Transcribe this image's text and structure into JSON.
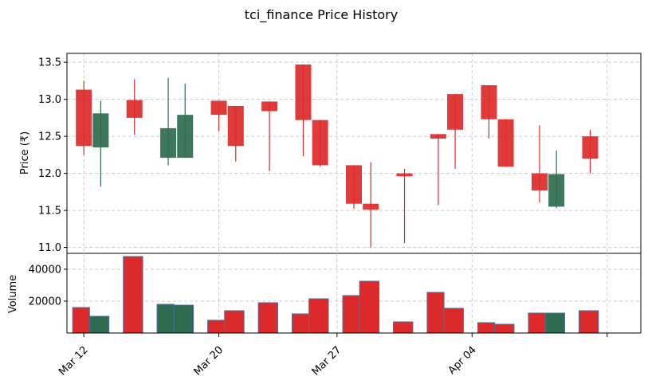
{
  "chart_data": {
    "type": "candlestick",
    "title": "tci_finance Price History",
    "price_panel": {
      "ylabel": "Price (₹)",
      "ylim": [
        10.92,
        13.62
      ],
      "yticks": [
        "11.0",
        "11.5",
        "12.0",
        "12.5",
        "13.0",
        "13.5"
      ],
      "ytick_values": [
        11.0,
        11.5,
        12.0,
        12.5,
        13.0,
        13.5
      ],
      "grid": true
    },
    "volume_panel": {
      "ylabel": "Volume",
      "ylim": [
        0,
        50000
      ],
      "yticks": [
        "20000",
        "40000"
      ],
      "ytick_values": [
        20000,
        40000
      ],
      "grid": true
    },
    "xticks": [
      {
        "label": "Mar 12",
        "date": "2025-03-12"
      },
      {
        "label": "Mar 20",
        "date": "2025-03-20"
      },
      {
        "label": "Mar 27",
        "date": "2025-03-27"
      },
      {
        "label": "Apr 04",
        "date": "2025-04-04"
      },
      {
        "label": "",
        "date": "2025-04-12"
      }
    ],
    "xlim": [
      "2025-03-11",
      "2025-04-14"
    ],
    "colors": {
      "up": "#2e6b4f",
      "down": "#dc2a2a",
      "volume_up": "#2e6b4f",
      "volume_down": "#dc2a2a",
      "volume_edge": "#4a6fa5",
      "grid": "#cccccc"
    },
    "candles": [
      {
        "date": "2025-03-12",
        "open": 13.13,
        "high": 13.25,
        "low": 12.25,
        "close": 12.37,
        "volume": 16000
      },
      {
        "date": "2025-03-13",
        "open": 12.35,
        "high": 12.98,
        "low": 11.82,
        "close": 12.81,
        "volume": 10500
      },
      {
        "date": "2025-03-15",
        "open": 12.99,
        "high": 13.27,
        "low": 12.52,
        "close": 12.75,
        "volume": 48000
      },
      {
        "date": "2025-03-17",
        "open": 12.21,
        "high": 13.29,
        "low": 12.11,
        "close": 12.61,
        "volume": 18000
      },
      {
        "date": "2025-03-18",
        "open": 12.21,
        "high": 13.21,
        "low": 12.21,
        "close": 12.79,
        "volume": 17500
      },
      {
        "date": "2025-03-20",
        "open": 12.98,
        "high": 12.98,
        "low": 12.57,
        "close": 12.79,
        "volume": 8000
      },
      {
        "date": "2025-03-21",
        "open": 12.91,
        "high": 12.91,
        "low": 12.16,
        "close": 12.37,
        "volume": 14000
      },
      {
        "date": "2025-03-23",
        "open": 12.97,
        "high": 12.97,
        "low": 12.03,
        "close": 12.84,
        "volume": 19000
      },
      {
        "date": "2025-03-25",
        "open": 13.47,
        "high": 13.47,
        "low": 12.23,
        "close": 12.72,
        "volume": 12000
      },
      {
        "date": "2025-03-26",
        "open": 12.72,
        "high": 12.72,
        "low": 12.09,
        "close": 12.11,
        "volume": 21500
      },
      {
        "date": "2025-03-28",
        "open": 12.11,
        "high": 12.11,
        "low": 11.52,
        "close": 11.59,
        "volume": 23500
      },
      {
        "date": "2025-03-29",
        "open": 11.59,
        "high": 12.15,
        "low": 11.0,
        "close": 11.51,
        "volume": 32500
      },
      {
        "date": "2025-03-31",
        "open": 12.0,
        "high": 12.06,
        "low": 11.06,
        "close": 11.96,
        "volume": 7000
      },
      {
        "date": "2025-04-02",
        "open": 12.53,
        "high": 12.53,
        "low": 11.57,
        "close": 12.47,
        "volume": 25500
      },
      {
        "date": "2025-04-03",
        "open": 13.07,
        "high": 13.07,
        "low": 12.06,
        "close": 12.59,
        "volume": 15500
      },
      {
        "date": "2025-04-05",
        "open": 13.19,
        "high": 13.19,
        "low": 12.47,
        "close": 12.73,
        "volume": 6500
      },
      {
        "date": "2025-04-06",
        "open": 12.73,
        "high": 12.73,
        "low": 12.09,
        "close": 12.09,
        "volume": 5500
      },
      {
        "date": "2025-04-08",
        "open": 12.0,
        "high": 12.65,
        "low": 11.61,
        "close": 11.77,
        "volume": 12500
      },
      {
        "date": "2025-04-09",
        "open": 11.55,
        "high": 12.31,
        "low": 11.53,
        "close": 11.99,
        "volume": 12500
      },
      {
        "date": "2025-04-11",
        "open": 12.5,
        "high": 12.59,
        "low": 12.0,
        "close": 12.2,
        "volume": 14000
      }
    ]
  }
}
